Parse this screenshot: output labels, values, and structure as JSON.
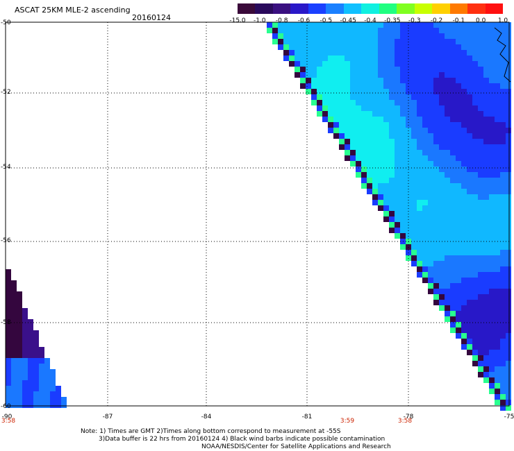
{
  "header": {
    "title": "ASCAT 25KM MLE-2 ascending",
    "date": "20160124"
  },
  "colorbar": {
    "labels": [
      "-15.0",
      "-1.0",
      "-0.8",
      "-0.6",
      "-0.5",
      "-0.45",
      "-0.4",
      "-0.35",
      "-0.3",
      "-0.2",
      "-0.1",
      "0.0",
      "1.0"
    ],
    "colors": [
      "#3a0a3a",
      "#2a0a5c",
      "#3a1080",
      "#2a18c8",
      "#1a40ff",
      "#1a80ff",
      "#10c0ff",
      "#10f0e0",
      "#20ff80",
      "#80ff20",
      "#c8ff00",
      "#ffd000",
      "#ff7a00",
      "#ff3010",
      "#ff1010"
    ]
  },
  "axes": {
    "lat_labels": [
      "-50",
      "-52",
      "-54",
      "-56",
      "-58",
      "-60"
    ],
    "lon_labels": [
      "-90",
      "-87",
      "-84",
      "-81",
      "-78",
      "-75"
    ],
    "time_labels": [
      "3:58",
      "3:59",
      "3:58"
    ]
  },
  "notes": {
    "line1": "Note: 1) Times are GMT 2)Times along bottom correspond to measurement at -55S",
    "line2": "3)Data buffer is 22 hrs from 20160124 4) Black wind barbs indicate possible contamination",
    "line3": "NOAA/NESDIS/Center for Satellite Applications and Research"
  }
}
